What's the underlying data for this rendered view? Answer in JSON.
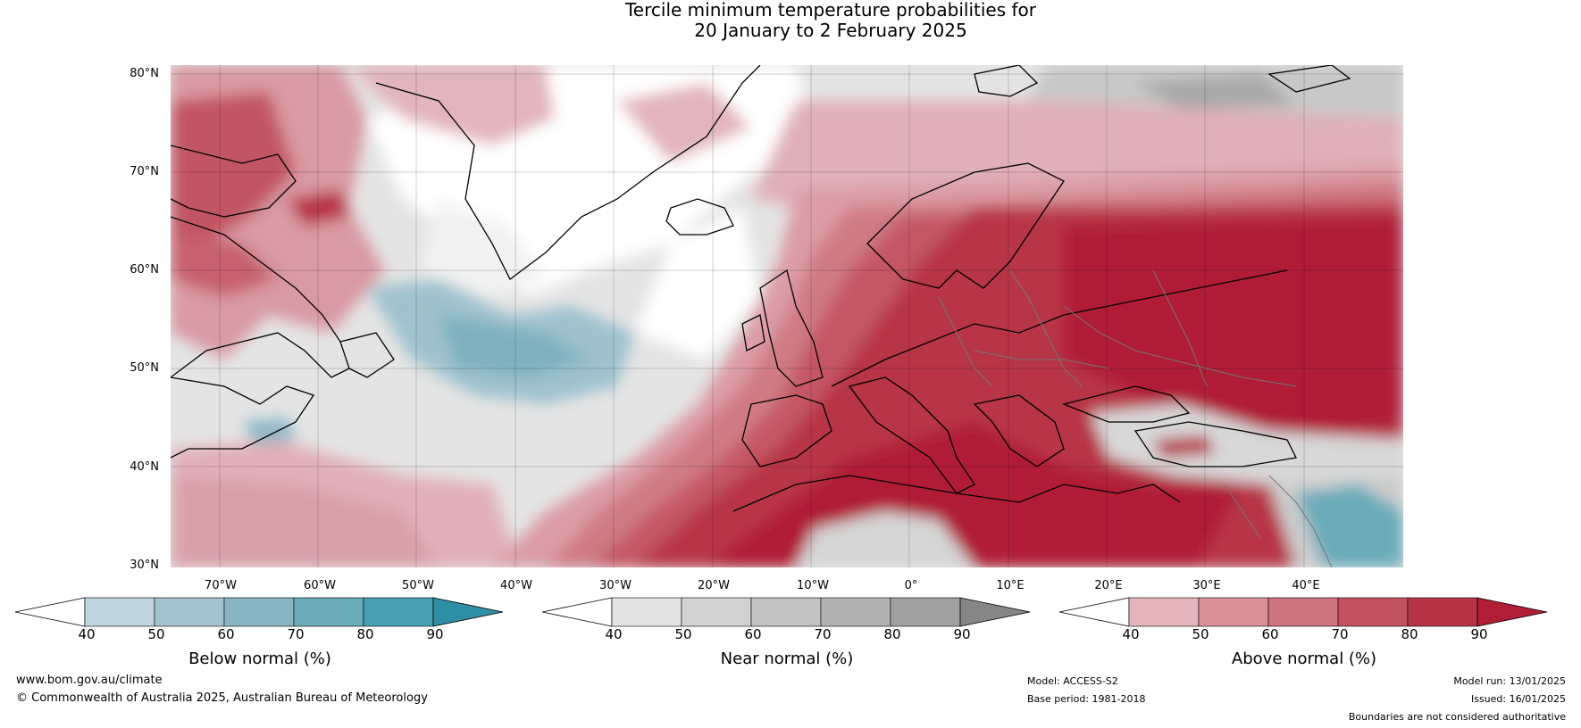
{
  "title": {
    "line1": "Tercile minimum temperature probabilities for",
    "line2": "20 January to 2 February 2025"
  },
  "map": {
    "lat_labels": [
      "80°N",
      "70°N",
      "60°N",
      "50°N",
      "40°N",
      "30°N"
    ],
    "lon_labels": [
      "70°W",
      "60°W",
      "50°W",
      "40°W",
      "30°W",
      "20°W",
      "10°W",
      "0°",
      "10°E",
      "20°E",
      "30°E",
      "40°E"
    ]
  },
  "colorbars": [
    {
      "label": "Below normal (%)",
      "ticks": [
        "40",
        "50",
        "60",
        "70",
        "80",
        "90"
      ],
      "colors": [
        "#bfd4dc",
        "#a3c4cf",
        "#88b4c4",
        "#6aacba",
        "#4aa0b3"
      ],
      "extend_color": "#2f8fa5"
    },
    {
      "label": "Near normal (%)",
      "ticks": [
        "40",
        "50",
        "60",
        "70",
        "80",
        "90"
      ],
      "colors": [
        "#e3e3e3",
        "#d2d2d2",
        "#c2c2c2",
        "#b1b1b1",
        "#a0a0a0"
      ],
      "extend_color": "#868686"
    },
    {
      "label": "Above normal (%)",
      "ticks": [
        "40",
        "50",
        "60",
        "70",
        "80",
        "90"
      ],
      "colors": [
        "#e5b5bc",
        "#d9929c",
        "#cd7580",
        "#c2525f",
        "#b73447"
      ],
      "extend_color": "#b01e38"
    }
  ],
  "footer": {
    "website": "www.bom.gov.au/climate",
    "copyright": "© Commonwealth of Australia 2025, Australian Bureau of Meteorology",
    "model": "Model: ACCESS-S2",
    "base_period": "Base period: 1981-2018",
    "model_run": "Model run: 13/01/2025",
    "issued": "Issued: 16/01/2025",
    "disclaimer": "Boundaries are not considered authoritative"
  }
}
